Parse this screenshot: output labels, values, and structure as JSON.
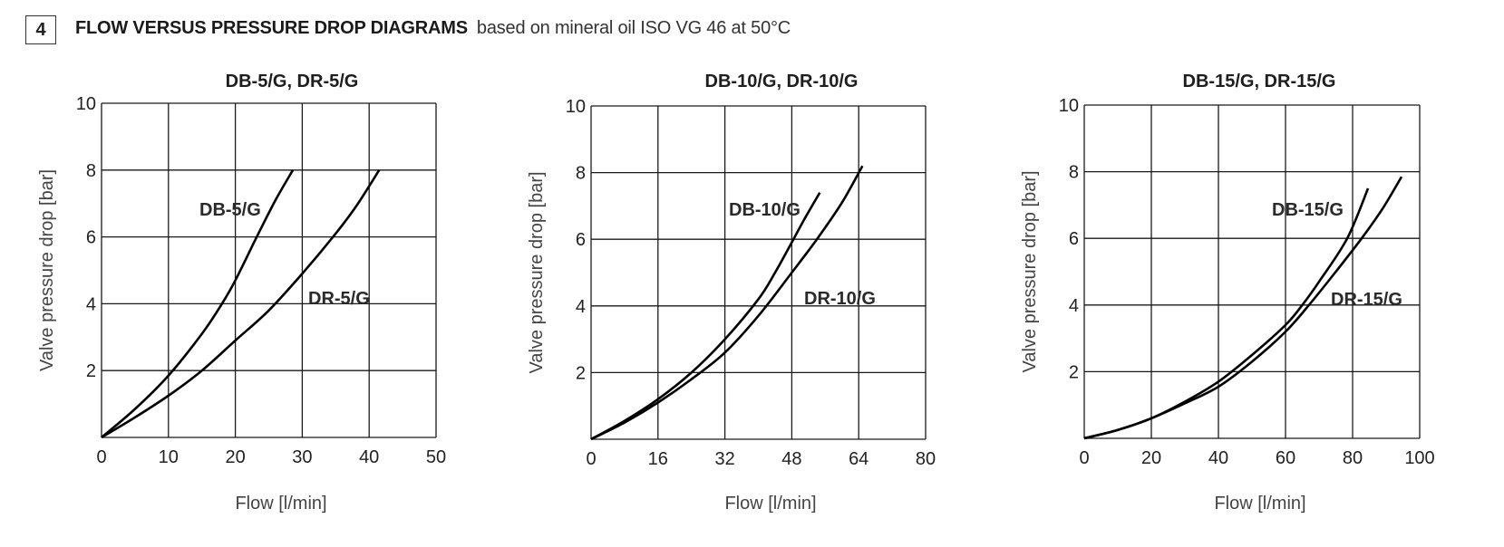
{
  "header": {
    "section_number": "4",
    "title": "FLOW VERSUS PRESSURE DROP DIAGRAMS",
    "subtitle": "based on mineral oil ISO VG 46 at 50°C"
  },
  "chart_data": [
    {
      "type": "line",
      "title": "DB-5/G, DR-5/G",
      "xlabel": "Flow [l/min]",
      "ylabel": "Valve pressure drop [bar]",
      "xlim": [
        0,
        50
      ],
      "ylim": [
        0,
        10
      ],
      "xticks": [
        "0",
        "10",
        "20",
        "30",
        "40",
        "50"
      ],
      "yticks": [
        "2",
        "4",
        "6",
        "8",
        "10"
      ],
      "grid": true,
      "series": [
        {
          "name": "DB-5/G",
          "label": "DB-5/G",
          "x": [
            0,
            5,
            10,
            15,
            18,
            20,
            23.2,
            26,
            28.6
          ],
          "y": [
            0,
            0.85,
            1.85,
            3.1,
            4.0,
            4.7,
            6.0,
            7.1,
            8.0
          ]
        },
        {
          "name": "DR-5/G",
          "label": "DR-5/G",
          "x": [
            0,
            5,
            10,
            15,
            20,
            25,
            30,
            34.6,
            38,
            41.5
          ],
          "y": [
            0,
            0.6,
            1.25,
            2.0,
            2.9,
            3.8,
            4.9,
            6.0,
            6.9,
            8.0
          ]
        }
      ]
    },
    {
      "type": "line",
      "title": "DB-10/G, DR-10/G",
      "xlabel": "Flow [l/min]",
      "ylabel": "Valve pressure drop [bar]",
      "xlim": [
        0,
        80
      ],
      "ylim": [
        0,
        10
      ],
      "xticks": [
        "0",
        "16",
        "32",
        "48",
        "64",
        "80"
      ],
      "yticks": [
        "2",
        "4",
        "6",
        "8",
        "10"
      ],
      "grid": true,
      "series": [
        {
          "name": "DB-10/G",
          "label": "DB-10/G",
          "x": [
            0,
            8,
            16,
            24,
            32,
            40,
            44,
            48.4,
            51,
            54.7
          ],
          "y": [
            0,
            0.55,
            1.2,
            2.0,
            3.0,
            4.2,
            5.0,
            6.0,
            6.6,
            7.4
          ]
        },
        {
          "name": "DR-10/G",
          "label": "DR-10/G",
          "x": [
            0,
            8,
            16,
            24,
            32,
            40,
            48,
            54,
            60,
            64.9
          ],
          "y": [
            0,
            0.5,
            1.1,
            1.8,
            2.6,
            3.7,
            5.0,
            6.0,
            7.1,
            8.2
          ]
        }
      ]
    },
    {
      "type": "line",
      "title": "DB-15/G, DR-15/G",
      "xlabel": "Flow [l/min]",
      "ylabel": "Valve pressure drop [bar]",
      "xlim": [
        0,
        100
      ],
      "ylim": [
        0,
        10
      ],
      "xticks": [
        "0",
        "20",
        "40",
        "60",
        "80",
        "100"
      ],
      "yticks": [
        "2",
        "4",
        "6",
        "8",
        "10"
      ],
      "grid": true,
      "series": [
        {
          "name": "DB-15/G",
          "label": "DB-15/G",
          "x": [
            0,
            10,
            20,
            30,
            40,
            50,
            60,
            65,
            70,
            78.4,
            84.6
          ],
          "y": [
            0,
            0.25,
            0.6,
            1.1,
            1.7,
            2.5,
            3.4,
            4.0,
            4.7,
            6.0,
            7.5
          ]
        },
        {
          "name": "DR-15/G",
          "label": "DR-15/G",
          "x": [
            0,
            10,
            20,
            30,
            40,
            50,
            60,
            67,
            75,
            82.7,
            89,
            94.6
          ],
          "y": [
            0,
            0.25,
            0.6,
            1.05,
            1.55,
            2.3,
            3.2,
            4.0,
            5.0,
            6.0,
            6.9,
            7.85
          ]
        }
      ]
    }
  ]
}
